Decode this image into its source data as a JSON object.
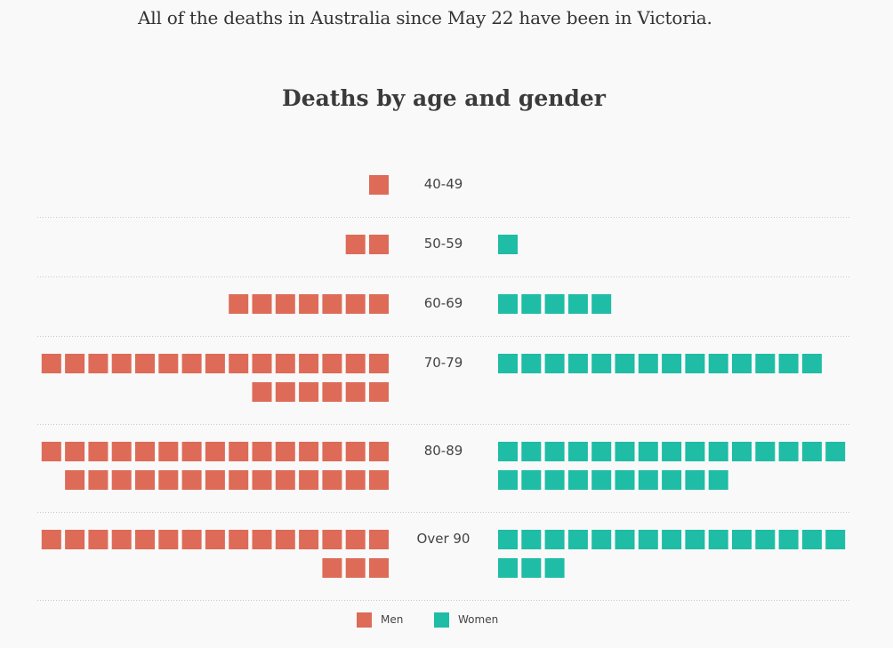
{
  "intro_text": "All of the deaths in Australia since May 22 have been in Victoria.",
  "colors": {
    "men": "#dd6b58",
    "women": "#1fbca6"
  },
  "chart_data": {
    "type": "waffle-pyramid",
    "title": "Deaths by age and gender",
    "unit": "one square per death",
    "squares_per_row": 15,
    "categories": [
      "40-49",
      "50-59",
      "60-69",
      "70-79",
      "80-89",
      "Over 90"
    ],
    "series": [
      {
        "name": "Men",
        "values": [
          1,
          2,
          7,
          21,
          29,
          18
        ]
      },
      {
        "name": "Women",
        "values": [
          0,
          1,
          5,
          14,
          25,
          18
        ]
      }
    ],
    "legend": [
      {
        "label": "Men"
      },
      {
        "label": "Women"
      }
    ]
  }
}
